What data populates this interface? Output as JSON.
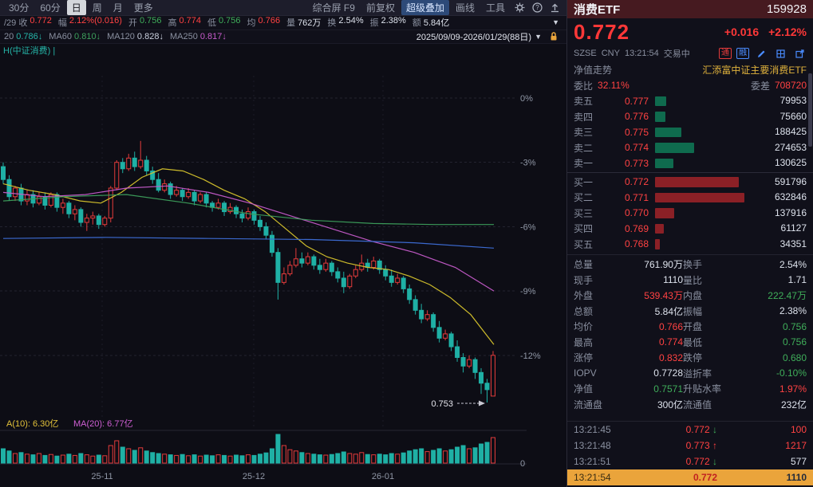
{
  "palette": {
    "up": "#ff4242",
    "down": "#3fae5a",
    "plain": "#dde2ec",
    "candle_up": "#e23b3b",
    "candle_down": "#1fb0a5",
    "bg": "#0d0d15"
  },
  "toolbar": {
    "periods": [
      "30分",
      "60分",
      "日",
      "周",
      "月",
      "更多"
    ],
    "active_period": "日",
    "tools": [
      "综合屏 F9",
      "前复权",
      "超级叠加",
      "画线",
      "工具"
    ],
    "active_tool": "超级叠加"
  },
  "info_row": {
    "items": [
      {
        "label": "/29 收",
        "value": "0.772",
        "c": "u"
      },
      {
        "label": "幅",
        "value": "2.12%(0.016)",
        "c": "u"
      },
      {
        "label": "开",
        "value": "0.756",
        "c": "d"
      },
      {
        "label": "高",
        "value": "0.774",
        "c": "u"
      },
      {
        "label": "低",
        "value": "0.756",
        "c": "d"
      },
      {
        "label": "均",
        "value": "0.766",
        "c": "u"
      },
      {
        "label": "量",
        "value": "762万",
        "c": "p"
      },
      {
        "label": "换",
        "value": "2.54%",
        "c": "p"
      },
      {
        "label": "振",
        "value": "2.38%",
        "c": "p"
      },
      {
        "label": "额",
        "value": "5.84亿",
        "c": "p"
      }
    ]
  },
  "ma_row": {
    "items": [
      {
        "label": "20",
        "value": "0.786↓",
        "cls": "v-teal"
      },
      {
        "label": "MA60",
        "value": "0.810↓",
        "cls": "v-grn"
      },
      {
        "label": "MA120",
        "value": "0.828↓",
        "cls": "v-wht"
      },
      {
        "label": "MA250",
        "value": "0.817↓",
        "cls": "v-mag"
      }
    ],
    "range": "2025/09/09-2026/01/29(88日)"
  },
  "chart_data": {
    "type": "candlestick",
    "corner_label": "H(中证消费) |",
    "ylabel_ticks": [
      "0%",
      "-3%",
      "-6%",
      "-9%",
      "-12%"
    ],
    "ytick_pcts": [
      0,
      -3,
      -6,
      -9,
      -12
    ],
    "x_ticks": [
      {
        "label": "25-11",
        "x": 128
      },
      {
        "label": "25-12",
        "x": 318
      },
      {
        "label": "26-01",
        "x": 480
      }
    ],
    "low_annotation": "0.753",
    "vol_ma_labels": [
      {
        "text": "A(10): 6.30亿",
        "color": "#e3c23a"
      },
      {
        "text": "MA(20): 6.77亿",
        "color": "#cf5fd4"
      }
    ],
    "vol_axis_zero": "0",
    "candles": [
      [
        -3.2,
        -3.0,
        -4.0,
        -3.8
      ],
      [
        -3.8,
        -3.6,
        -4.8,
        -4.6
      ],
      [
        -4.6,
        -4.1,
        -4.8,
        -4.2
      ],
      [
        -4.2,
        -4.0,
        -5.0,
        -4.8
      ],
      [
        -4.8,
        -4.3,
        -5.0,
        -4.5
      ],
      [
        -4.5,
        -4.3,
        -5.1,
        -4.9
      ],
      [
        -4.9,
        -4.4,
        -5.0,
        -4.6
      ],
      [
        -4.6,
        -4.4,
        -5.2,
        -5.0
      ],
      [
        -5.0,
        -4.4,
        -5.1,
        -4.5
      ],
      [
        -4.5,
        -4.4,
        -5.3,
        -5.1
      ],
      [
        -5.1,
        -4.7,
        -5.4,
        -4.9
      ],
      [
        -4.9,
        -4.8,
        -5.6,
        -5.4
      ],
      [
        -5.4,
        -5.0,
        -5.7,
        -5.2
      ],
      [
        -5.2,
        -5.1,
        -6.0,
        -5.8
      ],
      [
        -5.8,
        -5.4,
        -6.2,
        -5.6
      ],
      [
        -5.6,
        -5.3,
        -5.9,
        -5.5
      ],
      [
        -5.5,
        -5.4,
        -6.1,
        -5.9
      ],
      [
        -5.9,
        -5.5,
        -6.0,
        -5.6
      ],
      [
        -5.6,
        -4.1,
        -5.8,
        -4.2
      ],
      [
        -4.2,
        -2.9,
        -4.3,
        -3.0
      ],
      [
        -3.0,
        -2.8,
        -3.5,
        -3.3
      ],
      [
        -3.3,
        -2.6,
        -3.4,
        -2.8
      ],
      [
        -2.8,
        -2.5,
        -3.4,
        -3.2
      ],
      [
        -3.2,
        -2.0,
        -3.3,
        -2.9
      ],
      [
        -2.9,
        -2.7,
        -3.6,
        -3.4
      ],
      [
        -3.4,
        -3.2,
        -4.0,
        -3.8
      ],
      [
        -3.8,
        -3.5,
        -4.4,
        -4.3
      ],
      [
        -4.3,
        -3.8,
        -4.4,
        -4.0
      ],
      [
        -4.0,
        -3.9,
        -4.7,
        -4.5
      ],
      [
        -4.5,
        -4.1,
        -4.6,
        -4.3
      ],
      [
        -4.3,
        -4.2,
        -4.8,
        -4.6
      ],
      [
        -4.6,
        -4.2,
        -4.7,
        -4.4
      ],
      [
        -4.4,
        -4.3,
        -5.0,
        -4.8
      ],
      [
        -4.8,
        -4.4,
        -4.9,
        -4.5
      ],
      [
        -4.5,
        -4.4,
        -5.1,
        -4.9
      ],
      [
        -4.9,
        -4.8,
        -5.3,
        -5.1
      ],
      [
        -5.1,
        -4.7,
        -5.2,
        -4.9
      ],
      [
        -4.9,
        -4.8,
        -5.5,
        -5.3
      ],
      [
        -5.3,
        -4.9,
        -5.4,
        -5.1
      ],
      [
        -5.1,
        -5.0,
        -5.6,
        -5.4
      ],
      [
        -5.4,
        -5.2,
        -5.8,
        -5.6
      ],
      [
        -5.6,
        -5.1,
        -5.7,
        -5.3
      ],
      [
        -5.3,
        -5.2,
        -5.9,
        -5.7
      ],
      [
        -5.7,
        -5.5,
        -6.2,
        -6.0
      ],
      [
        -6.0,
        -5.8,
        -6.6,
        -6.4
      ],
      [
        -6.4,
        -6.2,
        -7.4,
        -7.2
      ],
      [
        -7.2,
        -7.0,
        -9.4,
        -8.6
      ],
      [
        -8.6,
        -7.9,
        -8.7,
        -8.2
      ],
      [
        -8.2,
        -7.6,
        -8.3,
        -7.8
      ],
      [
        -7.8,
        -7.0,
        -7.9,
        -7.5
      ],
      [
        -7.5,
        -7.2,
        -7.9,
        -7.7
      ],
      [
        -7.7,
        -7.2,
        -7.8,
        -7.4
      ],
      [
        -7.4,
        -7.3,
        -8.0,
        -7.8
      ],
      [
        -7.8,
        -7.5,
        -8.2,
        -8.0
      ],
      [
        -8.0,
        -7.5,
        -8.1,
        -7.7
      ],
      [
        -7.7,
        -7.6,
        -8.3,
        -8.1
      ],
      [
        -8.1,
        -7.9,
        -8.6,
        -8.4
      ],
      [
        -8.4,
        -8.1,
        -9.1,
        -8.8
      ],
      [
        -8.8,
        -8.2,
        -8.9,
        -8.3
      ],
      [
        -8.3,
        -7.8,
        -8.4,
        -8.0
      ],
      [
        -8.0,
        -7.3,
        -8.1,
        -7.7
      ],
      [
        -7.7,
        -7.5,
        -8.1,
        -7.9
      ],
      [
        -7.9,
        -7.4,
        -8.0,
        -7.6
      ],
      [
        -7.6,
        -7.5,
        -8.2,
        -8.0
      ],
      [
        -8.0,
        -7.8,
        -8.5,
        -8.3
      ],
      [
        -8.3,
        -8.0,
        -8.8,
        -8.6
      ],
      [
        -8.6,
        -8.2,
        -8.7,
        -8.4
      ],
      [
        -8.4,
        -8.3,
        -9.1,
        -8.9
      ],
      [
        -8.9,
        -8.7,
        -9.6,
        -9.4
      ],
      [
        -9.4,
        -9.2,
        -10.1,
        -9.9
      ],
      [
        -9.9,
        -9.6,
        -10.5,
        -10.3
      ],
      [
        -10.3,
        -9.9,
        -10.4,
        -10.1
      ],
      [
        -10.1,
        -10.0,
        -10.9,
        -10.7
      ],
      [
        -10.7,
        -10.4,
        -11.4,
        -11.2
      ],
      [
        -11.2,
        -10.8,
        -11.3,
        -11.0
      ],
      [
        -11.0,
        -10.9,
        -11.8,
        -11.6
      ],
      [
        -11.6,
        -11.3,
        -12.3,
        -12.1
      ],
      [
        -12.1,
        -11.9,
        -12.8,
        -12.5
      ],
      [
        -12.5,
        -12.0,
        -12.6,
        -12.2
      ],
      [
        -12.2,
        -12.1,
        -13.1,
        -12.8
      ],
      [
        -12.8,
        -12.6,
        -13.8,
        -13.3
      ],
      [
        -13.3,
        -13.1,
        -14.2,
        -13.6
      ],
      [
        -13.9,
        -11.8,
        -13.9,
        -12.0
      ]
    ],
    "volumes": [
      0.45,
      0.38,
      0.3,
      0.33,
      0.28,
      0.26,
      0.3,
      0.24,
      0.27,
      0.22,
      0.25,
      0.28,
      0.24,
      0.3,
      0.26,
      0.22,
      0.25,
      0.23,
      0.55,
      0.7,
      0.5,
      0.45,
      0.4,
      0.48,
      0.38,
      0.33,
      0.3,
      0.28,
      0.26,
      0.24,
      0.27,
      0.23,
      0.26,
      0.22,
      0.25,
      0.23,
      0.26,
      0.24,
      0.22,
      0.25,
      0.23,
      0.26,
      0.24,
      0.28,
      0.32,
      0.45,
      0.9,
      0.55,
      0.42,
      0.38,
      0.33,
      0.3,
      0.28,
      0.26,
      0.25,
      0.27,
      0.3,
      0.35,
      0.3,
      0.28,
      0.33,
      0.27,
      0.26,
      0.28,
      0.26,
      0.3,
      0.28,
      0.32,
      0.38,
      0.42,
      0.45,
      0.36,
      0.4,
      0.45,
      0.38,
      0.42,
      0.5,
      0.55,
      0.45,
      0.48,
      0.6,
      0.65,
      0.8
    ],
    "ma_lines": [
      {
        "name": "MA20",
        "color": "#d8c52c",
        "points": [
          [
            0,
            -4.0
          ],
          [
            0.05,
            -4.3
          ],
          [
            0.1,
            -4.5
          ],
          [
            0.15,
            -4.8
          ],
          [
            0.19,
            -4.9
          ],
          [
            0.23,
            -4.4
          ],
          [
            0.27,
            -3.7
          ],
          [
            0.31,
            -3.3
          ],
          [
            0.35,
            -3.4
          ],
          [
            0.39,
            -3.8
          ],
          [
            0.43,
            -4.3
          ],
          [
            0.47,
            -4.7
          ],
          [
            0.51,
            -5.3
          ],
          [
            0.55,
            -6.1
          ],
          [
            0.59,
            -6.9
          ],
          [
            0.63,
            -7.4
          ],
          [
            0.67,
            -7.7
          ],
          [
            0.71,
            -7.9
          ],
          [
            0.75,
            -8.0
          ],
          [
            0.79,
            -8.3
          ],
          [
            0.83,
            -8.7
          ],
          [
            0.87,
            -9.3
          ],
          [
            0.91,
            -10.1
          ],
          [
            0.955,
            -11.5
          ]
        ]
      },
      {
        "name": "MA60",
        "color": "#c75ccb",
        "points": [
          [
            0,
            -4.4
          ],
          [
            0.08,
            -4.6
          ],
          [
            0.16,
            -4.5
          ],
          [
            0.24,
            -4.2
          ],
          [
            0.32,
            -4.1
          ],
          [
            0.4,
            -4.4
          ],
          [
            0.48,
            -4.9
          ],
          [
            0.56,
            -5.5
          ],
          [
            0.64,
            -6.1
          ],
          [
            0.72,
            -6.7
          ],
          [
            0.8,
            -7.2
          ],
          [
            0.88,
            -7.9
          ],
          [
            0.955,
            -9.0
          ]
        ]
      },
      {
        "name": "MA120",
        "color": "#3da05c",
        "points": [
          [
            0,
            -4.8
          ],
          [
            0.12,
            -4.6
          ],
          [
            0.24,
            -4.5
          ],
          [
            0.36,
            -4.9
          ],
          [
            0.48,
            -5.4
          ],
          [
            0.6,
            -5.7
          ],
          [
            0.72,
            -5.85
          ],
          [
            0.84,
            -5.9
          ],
          [
            0.955,
            -5.9
          ]
        ]
      },
      {
        "name": "MA250",
        "color": "#3e6fd9",
        "points": [
          [
            0,
            -6.55
          ],
          [
            0.2,
            -6.5
          ],
          [
            0.4,
            -6.55
          ],
          [
            0.6,
            -6.6
          ],
          [
            0.8,
            -6.75
          ],
          [
            0.955,
            -7.0
          ]
        ]
      }
    ]
  },
  "quote": {
    "name": "消费ETF",
    "code": "159928",
    "price": "0.772",
    "change": "+0.016",
    "change_pct": "+2.12%",
    "exchange": "SZSE",
    "currency": "CNY",
    "time": "13:21:54",
    "status": "交易中",
    "badges": [
      "通",
      "融"
    ],
    "nav_label": "净值走势",
    "fund_name": "汇添富中证主要消费ETF",
    "weibi_label": "委比",
    "weibi_value": "32.11%",
    "weicha_label": "委差",
    "weicha_value": "708720",
    "asks": [
      {
        "label": "卖五",
        "price": "0.777",
        "vol": "79953"
      },
      {
        "label": "卖四",
        "price": "0.776",
        "vol": "75660"
      },
      {
        "label": "卖三",
        "price": "0.775",
        "vol": "188425"
      },
      {
        "label": "卖二",
        "price": "0.774",
        "vol": "274653"
      },
      {
        "label": "卖一",
        "price": "0.773",
        "vol": "130625"
      }
    ],
    "bids": [
      {
        "label": "买一",
        "price": "0.772",
        "vol": "591796"
      },
      {
        "label": "买二",
        "price": "0.771",
        "vol": "632846"
      },
      {
        "label": "买三",
        "price": "0.770",
        "vol": "137916"
      },
      {
        "label": "买四",
        "price": "0.769",
        "vol": "61127"
      },
      {
        "label": "买五",
        "price": "0.768",
        "vol": "34351"
      }
    ],
    "stats": [
      [
        "总量",
        "761.90万",
        "p",
        "换手",
        "2.54%",
        "p"
      ],
      [
        "现手",
        "1110",
        "p",
        "量比",
        "1.71",
        "p"
      ],
      [
        "外盘",
        "539.43万",
        "u",
        "内盘",
        "222.47万",
        "d"
      ],
      [
        "总额",
        "5.84亿",
        "p",
        "振幅",
        "2.38%",
        "p"
      ],
      [
        "均价",
        "0.766",
        "u",
        "开盘",
        "0.756",
        "d"
      ],
      [
        "最高",
        "0.774",
        "u",
        "最低",
        "0.756",
        "d"
      ],
      [
        "涨停",
        "0.832",
        "u",
        "跌停",
        "0.680",
        "d"
      ],
      [
        "IOPV",
        "0.7728",
        "p",
        "溢折率",
        "-0.10%",
        "d"
      ],
      [
        "净值",
        "0.7571",
        "d",
        "升贴水率",
        "1.97%",
        "u"
      ],
      [
        "流通盘",
        "300亿",
        "p",
        "流通值",
        "232亿",
        "p"
      ]
    ],
    "tick_list": [
      {
        "time": "13:21:45",
        "price": "0.772",
        "arrow": "↓",
        "ac": "d",
        "vol": "100",
        "vc": "u",
        "hl": false
      },
      {
        "time": "13:21:48",
        "price": "0.773",
        "arrow": "↑",
        "ac": "u",
        "vol": "1217",
        "vc": "u",
        "hl": false
      },
      {
        "time": "13:21:51",
        "price": "0.772",
        "arrow": "↓",
        "ac": "d",
        "vol": "577",
        "vc": "p",
        "hl": false
      },
      {
        "time": "13:21:54",
        "price": "0.772",
        "arrow": "",
        "ac": "",
        "vol": "1110",
        "vc": "p",
        "hl": true
      }
    ]
  }
}
